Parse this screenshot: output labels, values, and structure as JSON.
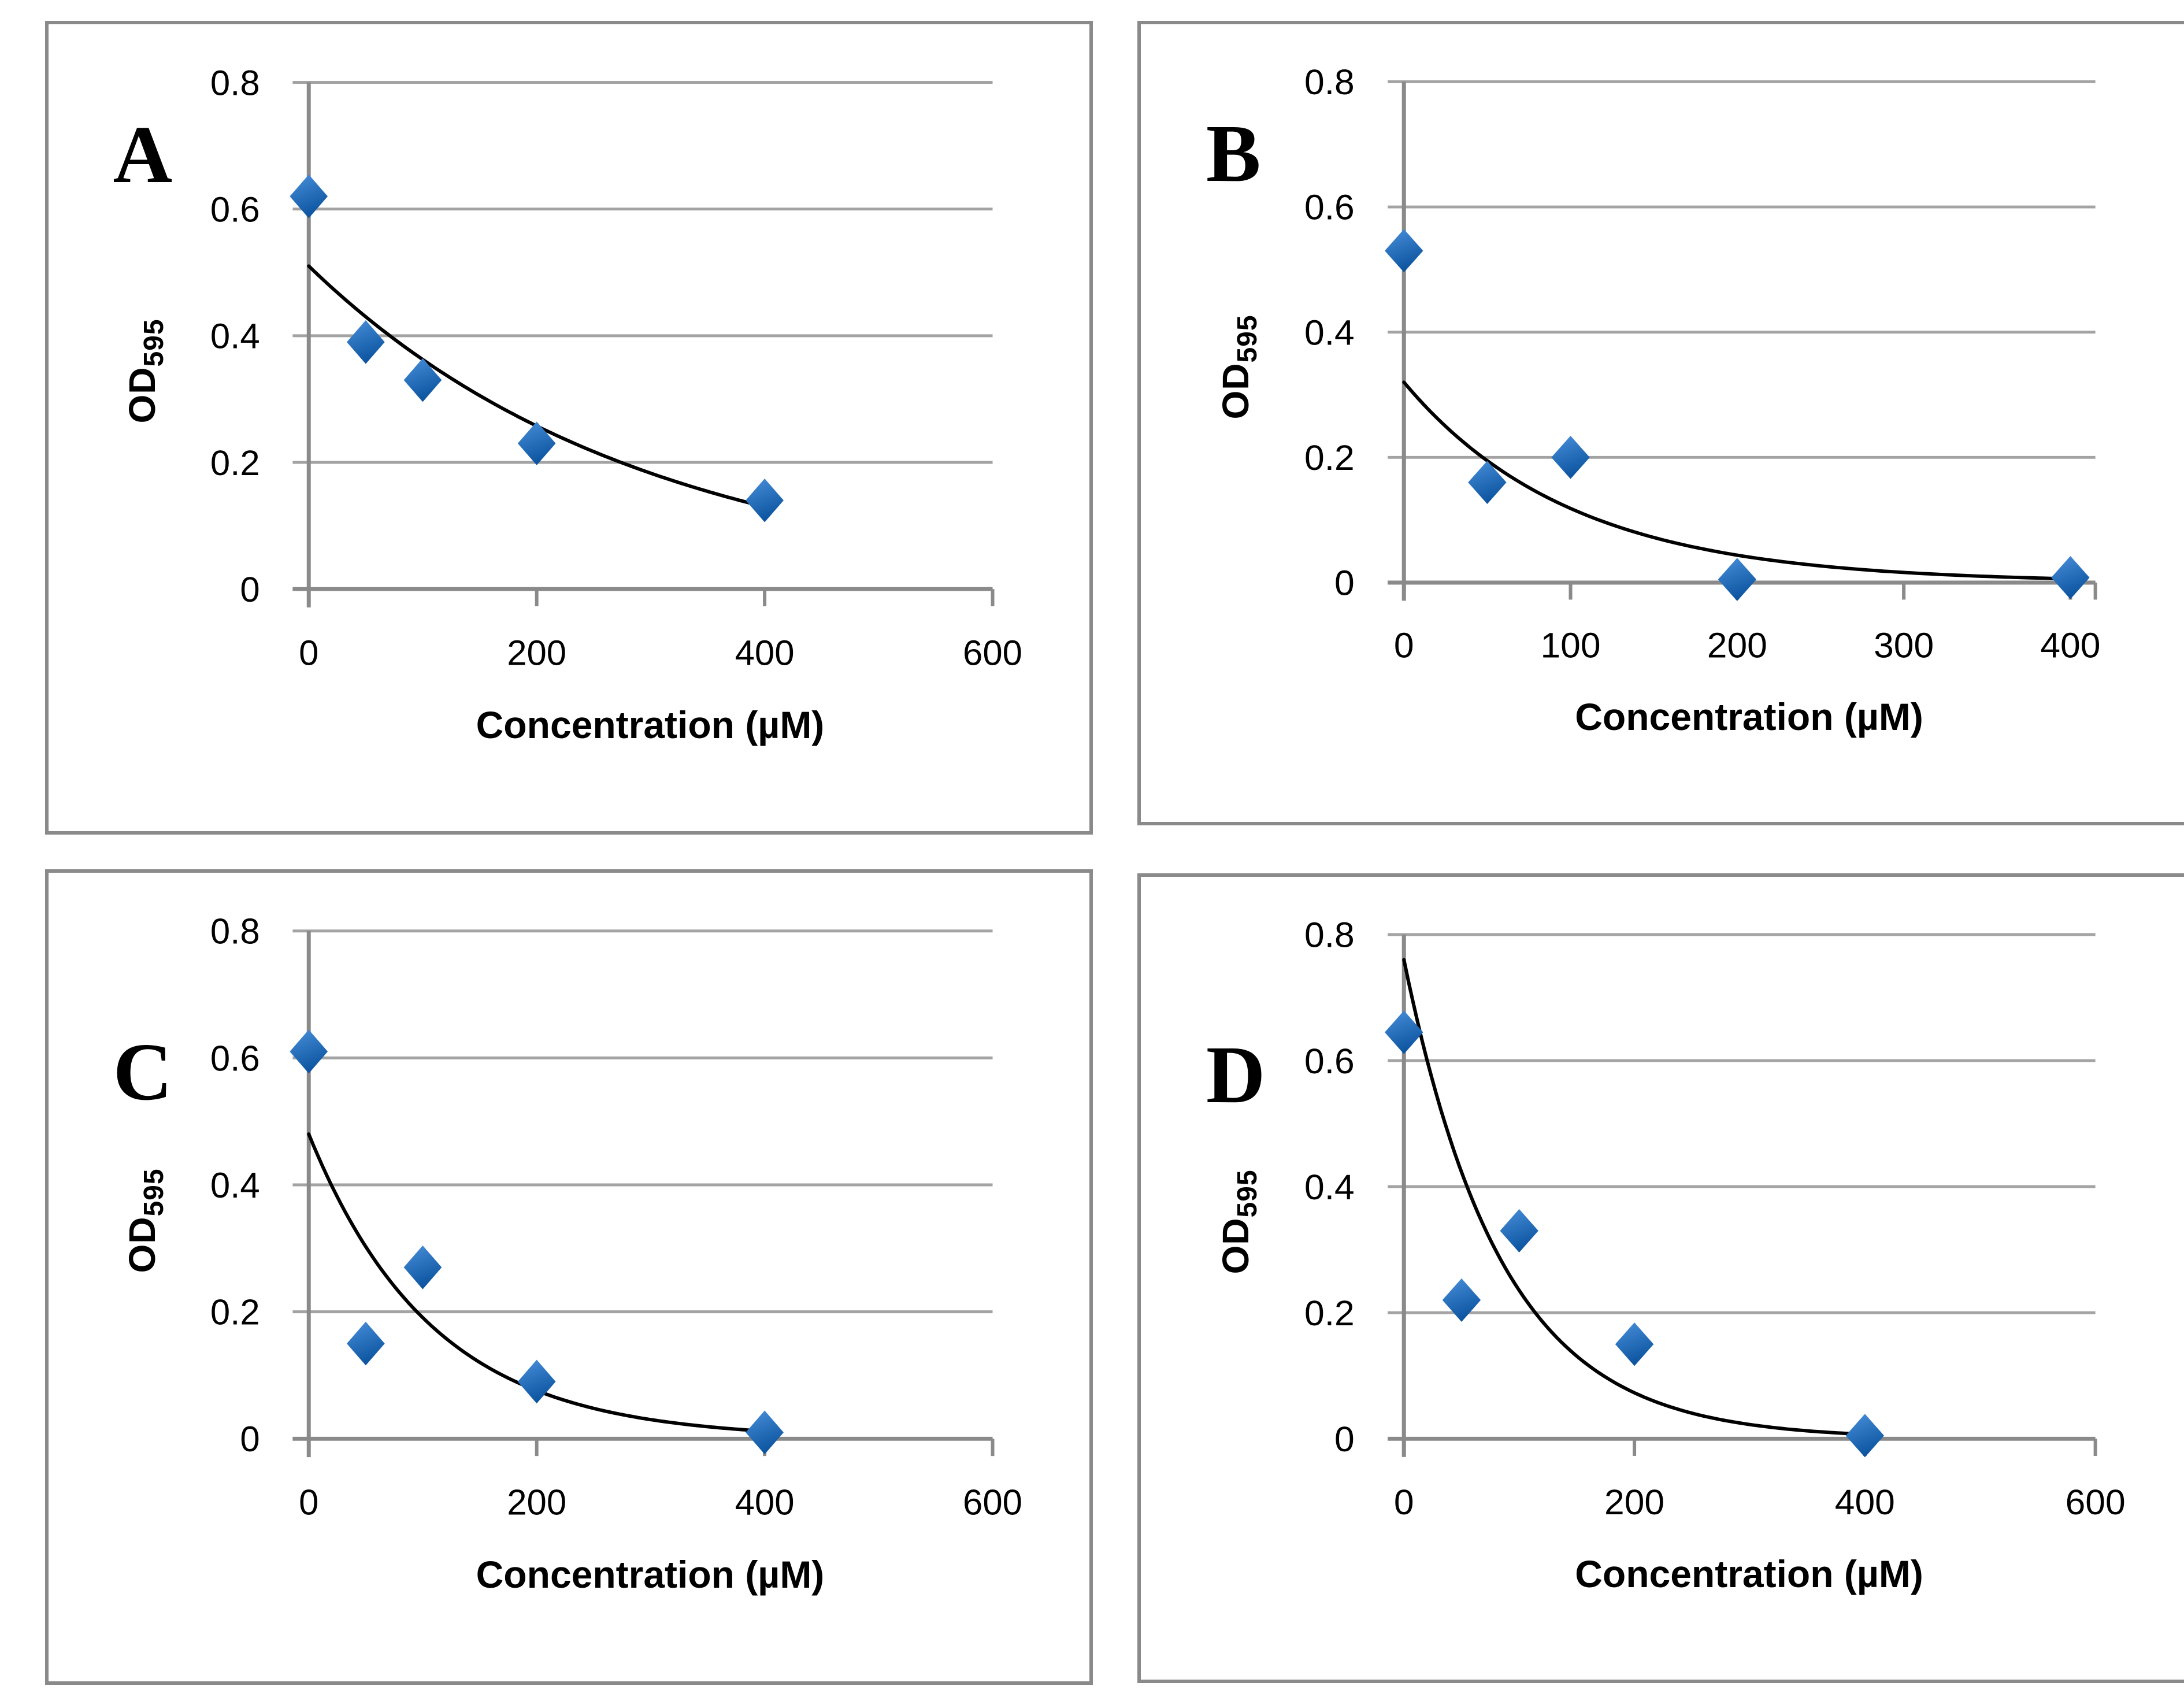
{
  "figure": {
    "description": "Four-panel scatter figure (A-D) of OD595 versus concentration with exponential decay trendlines",
    "background": "#ffffff"
  },
  "axes": {
    "x_label": "Concentration (µM)",
    "y_label_main": "OD",
    "y_label_sub": "595"
  },
  "colors": {
    "marker_gradient_top": "#4a90dc",
    "marker_gradient_bottom": "#0d55a0",
    "trend_line": "#000000",
    "gridline": "#a3a3a3",
    "axis_line": "#8a8a8a",
    "panel_border": "#8a8a8a",
    "text": "#000000"
  },
  "chart_data": [
    {
      "panel": "A",
      "type": "scatter",
      "marker": "diamond",
      "x": [
        0,
        50,
        100,
        200,
        400
      ],
      "y": [
        0.62,
        0.39,
        0.33,
        0.23,
        0.14
      ],
      "trend": {
        "kind": "exponential_decay",
        "y_at_0": 0.51,
        "y_at_400": 0.13
      },
      "xlabel": "Concentration (µM)",
      "ylabel": "OD595",
      "xlim": [
        0,
        600
      ],
      "xticks": [
        0,
        200,
        400,
        600
      ],
      "ylim": [
        0,
        0.8
      ],
      "yticks": [
        0,
        0.2,
        0.4,
        0.6,
        0.8
      ],
      "grid": "horizontal",
      "x_axis_end": 600
    },
    {
      "panel": "B",
      "type": "scatter",
      "marker": "diamond",
      "x": [
        0,
        50,
        100,
        200,
        400
      ],
      "y": [
        0.53,
        0.16,
        0.2,
        0.005,
        0.008
      ],
      "trend": {
        "kind": "exponential_decay",
        "y_at_0": 0.32,
        "y_at_400": 0.006
      },
      "xlabel": "Concentration (µM)",
      "ylabel": "OD595",
      "xlim": [
        0,
        400
      ],
      "xticks": [
        0,
        100,
        200,
        300,
        400
      ],
      "ylim": [
        0,
        0.8
      ],
      "yticks": [
        0,
        0.2,
        0.4,
        0.6,
        0.8
      ],
      "grid": "horizontal",
      "x_axis_end": 415
    },
    {
      "panel": "C",
      "type": "scatter",
      "marker": "diamond",
      "x": [
        0,
        50,
        100,
        200,
        400
      ],
      "y": [
        0.61,
        0.15,
        0.27,
        0.09,
        0.01
      ],
      "trend": {
        "kind": "exponential_decay",
        "y_at_0": 0.48,
        "y_at_400": 0.012
      },
      "xlabel": "Concentration (µM)",
      "ylabel": "OD595",
      "xlim": [
        0,
        600
      ],
      "xticks": [
        0,
        200,
        400,
        600
      ],
      "ylim": [
        0,
        0.8
      ],
      "yticks": [
        0,
        0.2,
        0.4,
        0.6,
        0.8
      ],
      "grid": "horizontal",
      "x_axis_end": 600
    },
    {
      "panel": "D",
      "type": "scatter",
      "marker": "diamond",
      "x": [
        0,
        50,
        100,
        200,
        400
      ],
      "y": [
        0.645,
        0.22,
        0.33,
        0.15,
        0.005
      ],
      "trend": {
        "kind": "exponential_decay",
        "y_at_0": 0.76,
        "y_at_400": 0.007
      },
      "xlabel": "Concentration (µM)",
      "ylabel": "OD595",
      "xlim": [
        0,
        600
      ],
      "xticks": [
        0,
        200,
        400,
        600
      ],
      "ylim": [
        0,
        0.8
      ],
      "yticks": [
        0,
        0.2,
        0.4,
        0.6,
        0.8
      ],
      "grid": "horizontal",
      "x_axis_end": 600
    }
  ]
}
